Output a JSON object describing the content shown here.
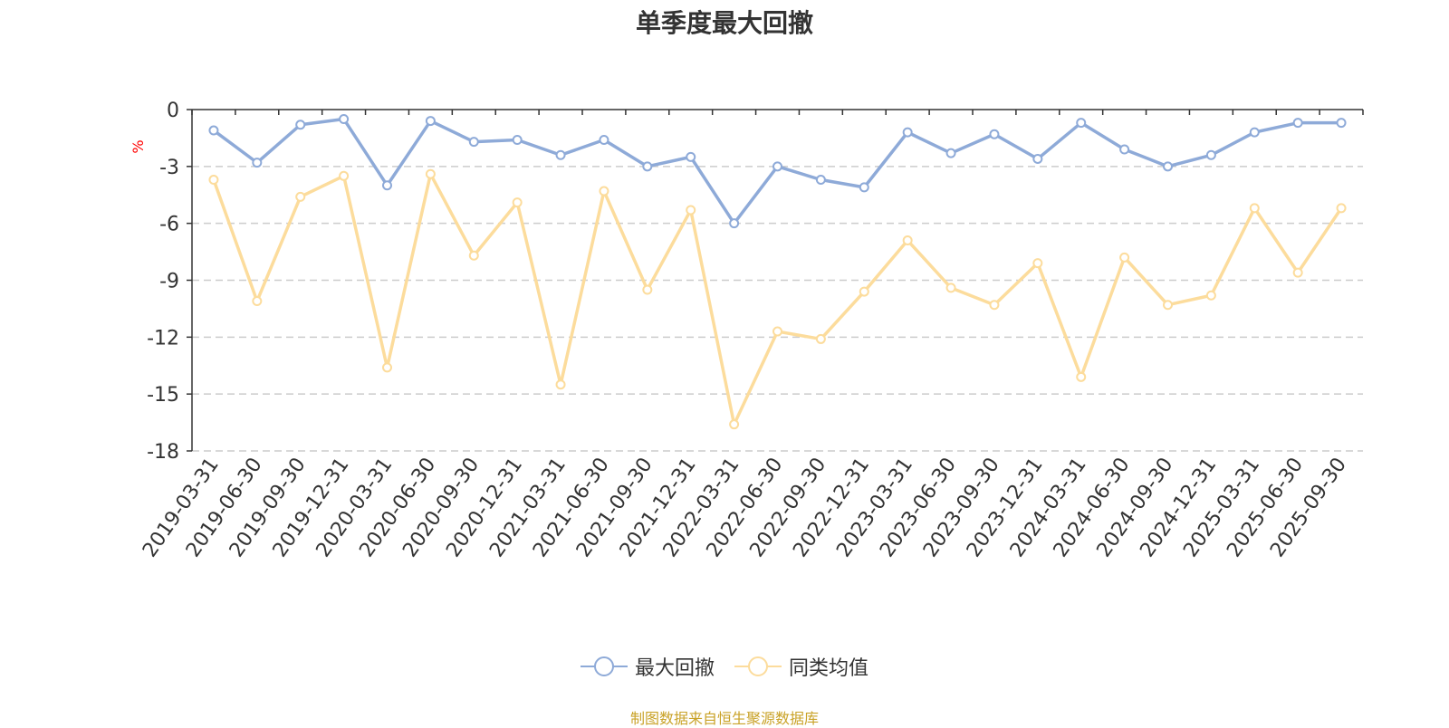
{
  "chart_data": {
    "type": "line",
    "title": "单季度最大回撤",
    "ylabel": "%",
    "xlabel": "",
    "ylim": [
      -18,
      0
    ],
    "yticks": [
      0,
      -3,
      -6,
      -9,
      -12,
      -15,
      -18
    ],
    "grid": true,
    "legend_position": "bottom-center",
    "categories": [
      "2019-03-31",
      "2019-06-30",
      "2019-09-30",
      "2019-12-31",
      "2020-03-31",
      "2020-06-30",
      "2020-09-30",
      "2020-12-31",
      "2021-03-31",
      "2021-06-30",
      "2021-09-30",
      "2021-12-31",
      "2022-03-31",
      "2022-06-30",
      "2022-09-30",
      "2022-12-31",
      "2023-03-31",
      "2023-06-30",
      "2023-09-30",
      "2023-12-31",
      "2024-03-31",
      "2024-06-30",
      "2024-09-30",
      "2024-12-31",
      "2025-03-31",
      "2025-06-30",
      "2025-09-30"
    ],
    "series": [
      {
        "name": "最大回撤",
        "color": "#8eaad8",
        "values": [
          -1.1,
          -2.8,
          -0.8,
          -0.5,
          -4.0,
          -0.6,
          -1.7,
          -1.6,
          -2.4,
          -1.6,
          -3.0,
          -2.5,
          -6.0,
          -3.0,
          -3.7,
          -4.1,
          -1.2,
          -2.3,
          -1.3,
          -2.6,
          -0.7,
          -2.1,
          -3.0,
          -2.4,
          -1.2,
          -0.7,
          -0.7
        ]
      },
      {
        "name": "同类均值",
        "color": "#fcdc9c",
        "values": [
          -3.7,
          -10.1,
          -4.6,
          -3.5,
          -13.6,
          -3.4,
          -7.7,
          -4.9,
          -14.5,
          -4.3,
          -9.5,
          -5.3,
          -16.6,
          -11.7,
          -12.1,
          -9.6,
          -6.9,
          -9.4,
          -10.3,
          -8.1,
          -14.1,
          -7.8,
          -10.3,
          -9.8,
          -5.2,
          -8.6,
          -5.2
        ]
      }
    ]
  },
  "source_note": "制图数据来自恒生聚源数据库"
}
